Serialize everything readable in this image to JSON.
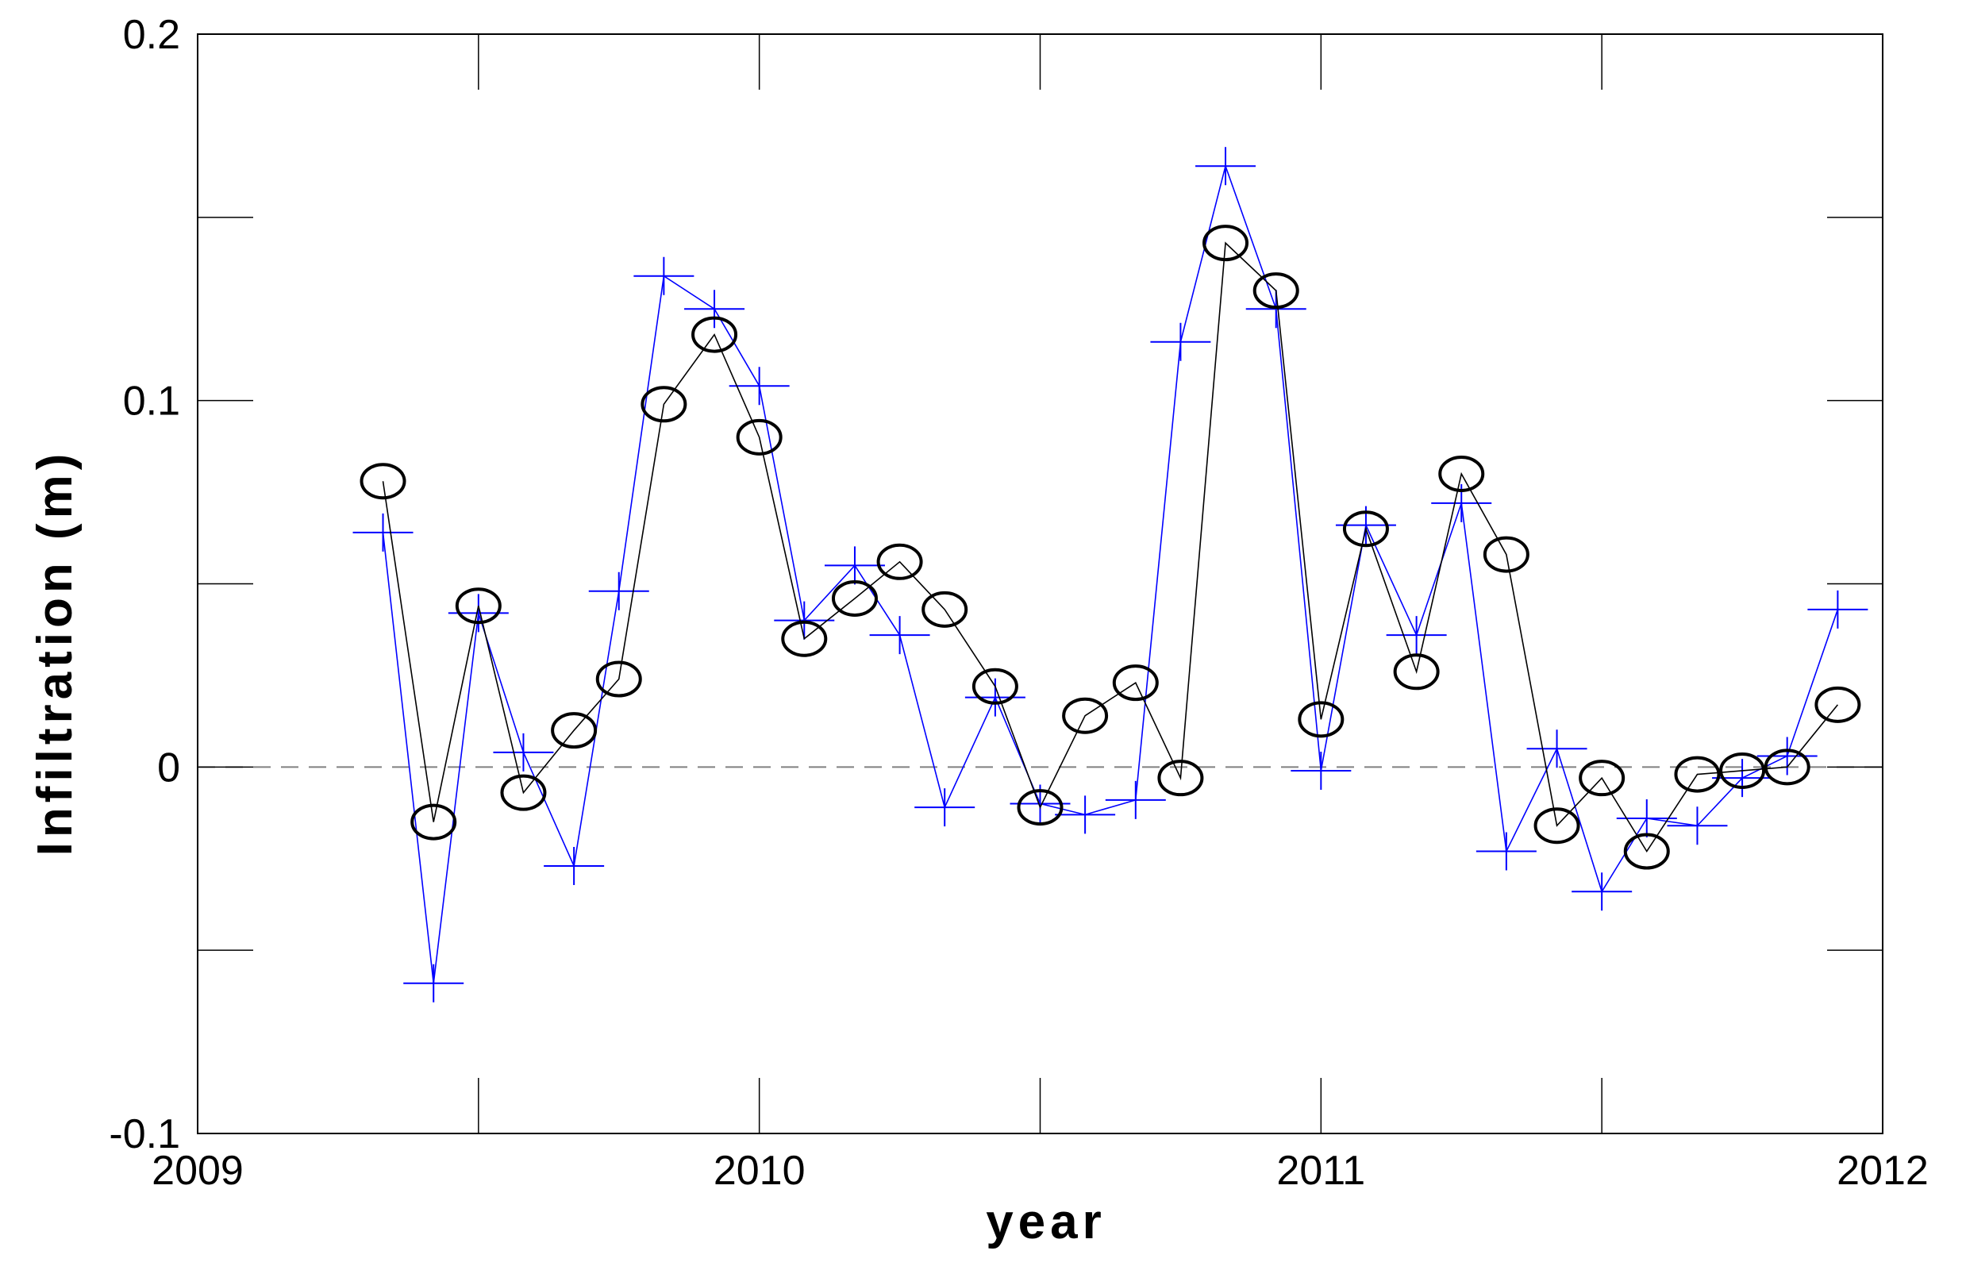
{
  "chart_data": {
    "type": "line",
    "xlabel": "year",
    "ylabel": "Infiltration (m)",
    "xlim": [
      2009,
      2012
    ],
    "ylim": [
      -0.1,
      0.2
    ],
    "x_ticks": [
      2009,
      2010,
      2011,
      2012
    ],
    "x_tick_labels": [
      "2009",
      "2010",
      "2011",
      "2012"
    ],
    "x_minor_ticks": [
      2009.5,
      2010.5,
      2011.5
    ],
    "y_ticks": [
      -0.1,
      0,
      0.1,
      0.2
    ],
    "y_tick_labels": [
      "-0.1",
      "0",
      "0.1",
      "0.2"
    ],
    "y_minor_ticks": [
      -0.05,
      0.05,
      0.15
    ],
    "reference_line": {
      "y": 0,
      "style": "dashed",
      "color": "#808080"
    },
    "grid": false,
    "legend": "none",
    "x": [
      2009.33,
      2009.42,
      2009.5,
      2009.58,
      2009.67,
      2009.75,
      2009.83,
      2009.92,
      2010.0,
      2010.08,
      2010.17,
      2010.25,
      2010.33,
      2010.42,
      2010.5,
      2010.58,
      2010.67,
      2010.75,
      2010.83,
      2010.92,
      2011.0,
      2011.08,
      2011.17,
      2011.25,
      2011.33,
      2011.42,
      2011.5,
      2011.58,
      2011.67,
      2011.75,
      2011.83,
      2011.92
    ],
    "series": [
      {
        "color": "#000000",
        "marker": "circle",
        "values": [
          0.078,
          -0.015,
          0.044,
          -0.007,
          0.01,
          0.024,
          0.099,
          0.118,
          0.09,
          0.035,
          0.046,
          0.056,
          0.043,
          0.022,
          -0.011,
          0.014,
          0.023,
          -0.003,
          0.143,
          0.13,
          0.013,
          0.065,
          0.026,
          0.08,
          0.058,
          -0.016,
          -0.003,
          -0.023,
          -0.002,
          -0.001,
          0.0,
          0.017
        ]
      },
      {
        "color": "#0000ff",
        "marker": "plus",
        "values": [
          0.064,
          -0.059,
          0.042,
          0.004,
          -0.027,
          0.048,
          0.134,
          0.125,
          0.104,
          0.04,
          0.055,
          0.036,
          -0.011,
          0.019,
          -0.01,
          -0.013,
          -0.009,
          0.116,
          0.164,
          0.125,
          -0.001,
          0.066,
          0.036,
          0.072,
          -0.023,
          0.005,
          -0.034,
          -0.014,
          -0.016,
          -0.003,
          0.003,
          0.043
        ]
      }
    ]
  }
}
